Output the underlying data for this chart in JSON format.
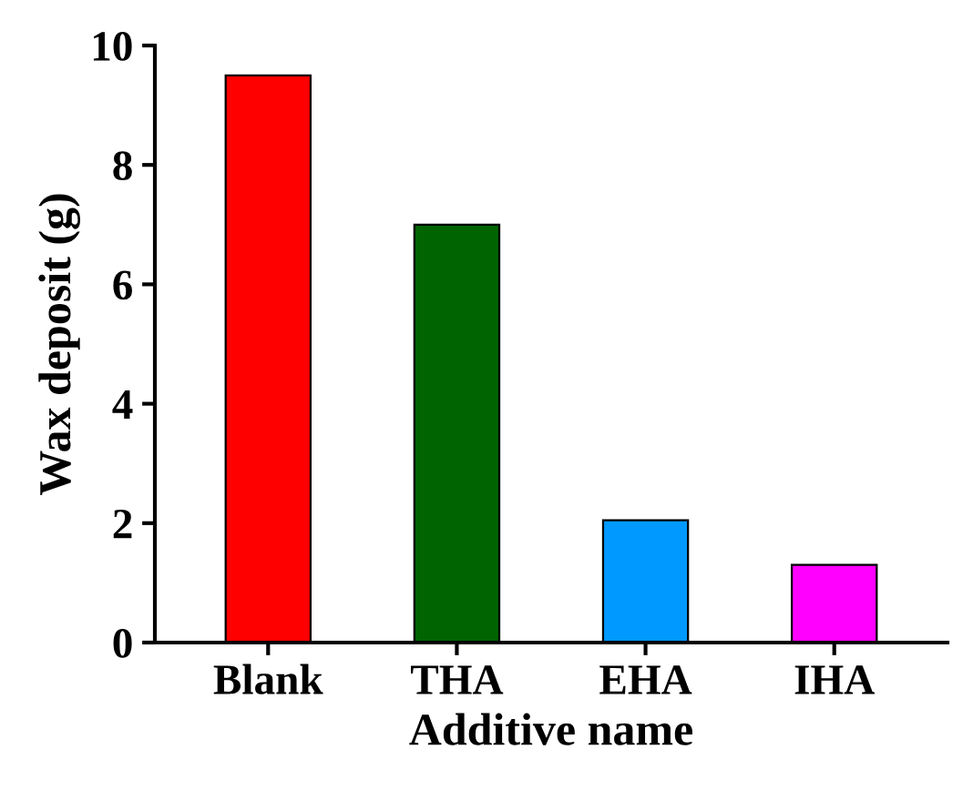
{
  "chart_data": {
    "type": "bar",
    "xlabel": "Additive name",
    "ylabel": "Wax deposit (g)",
    "categories": [
      "Blank",
      "THA",
      "EHA",
      "IHA"
    ],
    "values": [
      9.5,
      7.0,
      2.05,
      1.3
    ],
    "colors": [
      "#ff0000",
      "#006400",
      "#0099ff",
      "#ff00ff"
    ],
    "ylim": [
      0,
      10
    ],
    "yticks": [
      0,
      2,
      4,
      6,
      8,
      10
    ],
    "grid": false,
    "legend": false
  }
}
